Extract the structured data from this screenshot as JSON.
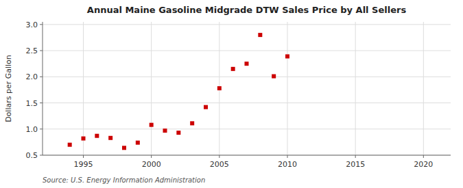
{
  "chart_data": {
    "type": "scatter",
    "title": "Annual Maine Gasoline Midgrade DTW Sales Price by All Sellers",
    "ylabel": "Dollars per Gallon",
    "annotations": [
      "Source: U.S. Energy Information Administration"
    ],
    "x": [
      1994,
      1995,
      1996,
      1997,
      1998,
      1999,
      2000,
      2001,
      2002,
      2003,
      2004,
      2005,
      2006,
      2007,
      2008,
      2009,
      2010
    ],
    "values": [
      0.7,
      0.82,
      0.87,
      0.83,
      0.64,
      0.74,
      1.08,
      0.97,
      0.93,
      1.11,
      1.42,
      1.78,
      2.15,
      2.25,
      2.8,
      2.01,
      2.39
    ],
    "color": "#cc0000",
    "marker": "square",
    "grid": true,
    "xlim": [
      1992,
      2022
    ],
    "ylim": [
      0.5,
      3.05
    ],
    "xticks": [
      1995,
      2000,
      2005,
      2010,
      2015,
      2020
    ],
    "yticks": [
      0.5,
      {
        "value": 1.0,
        "label": "1.0"
      },
      1.5,
      {
        "value": 2.0,
        "label": "2.0"
      },
      2.5,
      {
        "value": 3.0,
        "label": "3.0"
      }
    ]
  }
}
